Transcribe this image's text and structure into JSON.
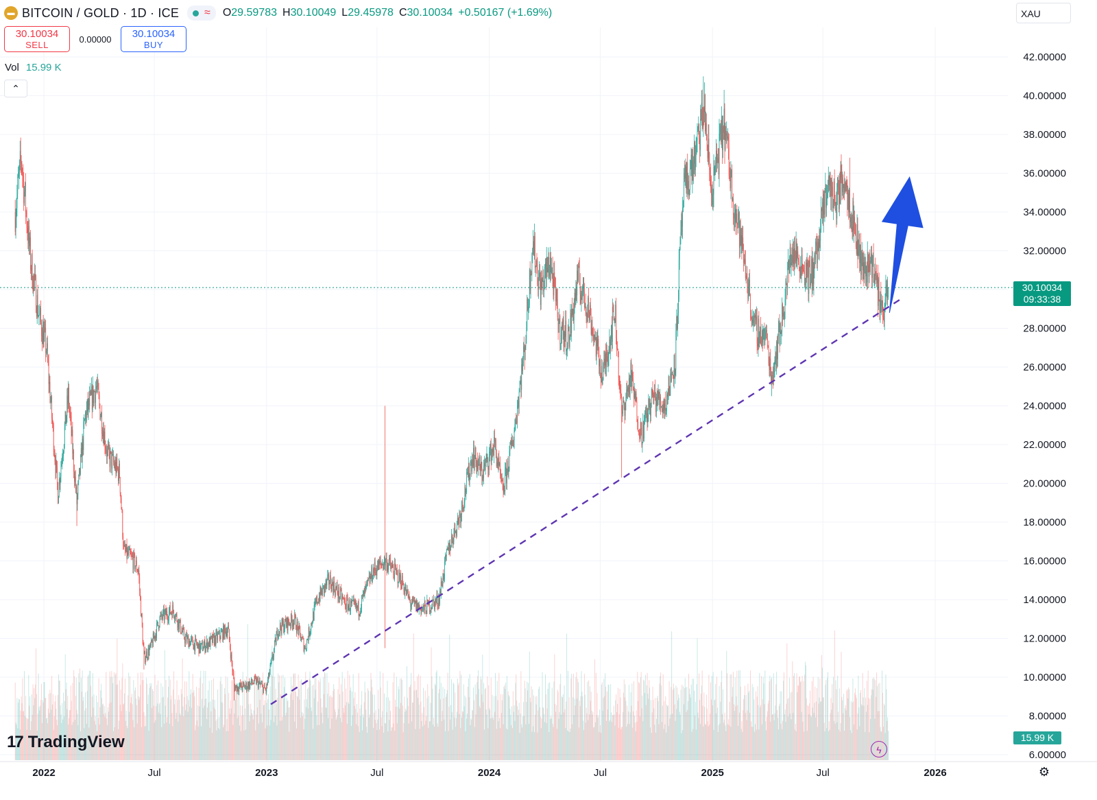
{
  "header": {
    "title": "BITCOIN / GOLD · 1D · ICE",
    "logo_icon": "gold-bars-icon",
    "market_status_icon": "green-dot-icon",
    "delay_symbol": "≈",
    "ohlc": [
      {
        "label": "O",
        "value": "29.59783"
      },
      {
        "label": "H",
        "value": "30.10049"
      },
      {
        "label": "L",
        "value": "29.45978"
      },
      {
        "label": "C",
        "value": "30.10034"
      }
    ],
    "change": "+0.50167 (+1.69%)"
  },
  "trade": {
    "sell_price": "30.10034",
    "sell_label": "SELL",
    "spread": "0.00000",
    "buy_price": "30.10034",
    "buy_label": "BUY"
  },
  "volume": {
    "label": "Vol",
    "value": "15.99 K"
  },
  "collapse_icon": "chevron-up-icon",
  "currency": "XAU",
  "last_price": {
    "value": "30.10034",
    "countdown": "09:33:38"
  },
  "volume_tag": "15.99 K",
  "brand": "TradingView",
  "colors": {
    "up": "#26a69a",
    "down": "#ef5350",
    "trendline": "#5e35b1",
    "arrow": "#1f4fe0",
    "last_price": "#089981"
  },
  "chart_data": {
    "type": "candlestick",
    "x_ticks": [
      "2022",
      "Jul",
      "2023",
      "Jul",
      "2024",
      "Jul",
      "2025",
      "Jul",
      "2026"
    ],
    "x_tick_dates": [
      "2022-01-01",
      "2022-07-01",
      "2023-01-01",
      "2023-07-01",
      "2024-01-01",
      "2024-07-01",
      "2025-01-01",
      "2025-07-01",
      "2026-01-01"
    ],
    "y_ticks": [
      "6.00000",
      "8.00000",
      "10.00000",
      "12.00000",
      "14.00000",
      "16.00000",
      "18.00000",
      "20.00000",
      "22.00000",
      "24.00000",
      "26.00000",
      "28.00000",
      "30.00000",
      "32.00000",
      "34.00000",
      "36.00000",
      "38.00000",
      "40.00000",
      "42.00000"
    ],
    "ylim": [
      6,
      42
    ],
    "series_path": [
      [
        "2021-11-15",
        34.0
      ],
      [
        "2021-11-25",
        36.8
      ],
      [
        "2021-12-10",
        31.5
      ],
      [
        "2021-12-25",
        28.5
      ],
      [
        "2022-01-05",
        27.0
      ],
      [
        "2022-01-24",
        19.5
      ],
      [
        "2022-02-10",
        24.5
      ],
      [
        "2022-02-24",
        19.0
      ],
      [
        "2022-03-10",
        23.5
      ],
      [
        "2022-03-28",
        25.0
      ],
      [
        "2022-04-15",
        21.5
      ],
      [
        "2022-05-05",
        20.5
      ],
      [
        "2022-05-12",
        16.5
      ],
      [
        "2022-05-28",
        16.0
      ],
      [
        "2022-06-05",
        15.5
      ],
      [
        "2022-06-14",
        11.0
      ],
      [
        "2022-06-25",
        11.5
      ],
      [
        "2022-07-10",
        13.0
      ],
      [
        "2022-08-01",
        13.5
      ],
      [
        "2022-08-20",
        12.0
      ],
      [
        "2022-09-15",
        11.5
      ],
      [
        "2022-10-10",
        12.0
      ],
      [
        "2022-10-30",
        12.5
      ],
      [
        "2022-11-09",
        9.5
      ],
      [
        "2022-11-25",
        9.5
      ],
      [
        "2022-12-15",
        9.8
      ],
      [
        "2022-12-31",
        9.3
      ],
      [
        "2023-01-20",
        12.5
      ],
      [
        "2023-02-15",
        13.0
      ],
      [
        "2023-03-05",
        11.5
      ],
      [
        "2023-03-25",
        14.0
      ],
      [
        "2023-04-14",
        15.0
      ],
      [
        "2023-05-10",
        13.8
      ],
      [
        "2023-06-01",
        13.5
      ],
      [
        "2023-06-25",
        15.5
      ],
      [
        "2023-07-15",
        16.0
      ],
      [
        "2023-08-10",
        15.0
      ],
      [
        "2023-08-25",
        13.8
      ],
      [
        "2023-09-15",
        13.5
      ],
      [
        "2023-10-10",
        14.0
      ],
      [
        "2023-10-25",
        16.5
      ],
      [
        "2023-11-15",
        18.5
      ],
      [
        "2023-12-05",
        21.5
      ],
      [
        "2023-12-20",
        20.5
      ],
      [
        "2024-01-10",
        22.0
      ],
      [
        "2024-01-23",
        19.5
      ],
      [
        "2024-02-10",
        22.5
      ],
      [
        "2024-02-28",
        27.0
      ],
      [
        "2024-03-12",
        32.5
      ],
      [
        "2024-03-25",
        30.0
      ],
      [
        "2024-04-10",
        31.5
      ],
      [
        "2024-04-25",
        28.0
      ],
      [
        "2024-05-10",
        27.5
      ],
      [
        "2024-05-25",
        30.5
      ],
      [
        "2024-06-12",
        29.0
      ],
      [
        "2024-06-25",
        27.0
      ],
      [
        "2024-07-05",
        25.5
      ],
      [
        "2024-07-25",
        29.0
      ],
      [
        "2024-08-05",
        23.5
      ],
      [
        "2024-08-20",
        25.5
      ],
      [
        "2024-09-06",
        22.5
      ],
      [
        "2024-09-25",
        24.5
      ],
      [
        "2024-10-15",
        24.0
      ],
      [
        "2024-11-01",
        26.5
      ],
      [
        "2024-11-08",
        31.5
      ],
      [
        "2024-11-15",
        35.0
      ],
      [
        "2024-12-05",
        37.0
      ],
      [
        "2024-12-18",
        39.5
      ],
      [
        "2024-12-30",
        35.0
      ],
      [
        "2025-01-20",
        38.5
      ],
      [
        "2025-02-05",
        34.5
      ],
      [
        "2025-02-25",
        31.0
      ],
      [
        "2025-03-10",
        28.0
      ],
      [
        "2025-03-30",
        27.5
      ],
      [
        "2025-04-08",
        25.5
      ],
      [
        "2025-04-25",
        28.5
      ],
      [
        "2025-05-10",
        32.0
      ],
      [
        "2025-05-25",
        31.5
      ],
      [
        "2025-06-10",
        30.5
      ],
      [
        "2025-06-25",
        32.5
      ],
      [
        "2025-07-08",
        35.5
      ],
      [
        "2025-07-22",
        34.5
      ],
      [
        "2025-08-05",
        36.0
      ],
      [
        "2025-08-20",
        33.5
      ],
      [
        "2025-09-05",
        31.0
      ],
      [
        "2025-09-20",
        31.5
      ],
      [
        "2025-10-01",
        29.5
      ],
      [
        "2025-10-10",
        29.0
      ],
      [
        "2025-10-14",
        29.6
      ],
      [
        "2025-10-16",
        30.1
      ]
    ],
    "wick_extremes": [
      [
        "2022-02-24",
        17.8
      ],
      [
        "2022-06-14",
        10.4
      ],
      [
        "2022-11-09",
        8.8
      ],
      [
        "2023-07-14",
        24.0
      ],
      [
        "2023-07-14",
        11.5
      ],
      [
        "2024-08-05",
        20.3
      ],
      [
        "2024-12-17",
        41.0
      ],
      [
        "2025-01-20",
        40.3
      ],
      [
        "2025-04-08",
        24.5
      ],
      [
        "2025-08-14",
        36.8
      ]
    ],
    "trendline": {
      "start": [
        "2023-01-08",
        8.6
      ],
      "end": [
        "2025-11-10",
        29.6
      ],
      "style": "dashed"
    },
    "arrow": {
      "start": [
        "2025-10-18",
        28.8
      ],
      "end": [
        "2025-11-20",
        35.8
      ],
      "direction": "up"
    },
    "last_price": 30.10034,
    "volume_max": 16
  }
}
